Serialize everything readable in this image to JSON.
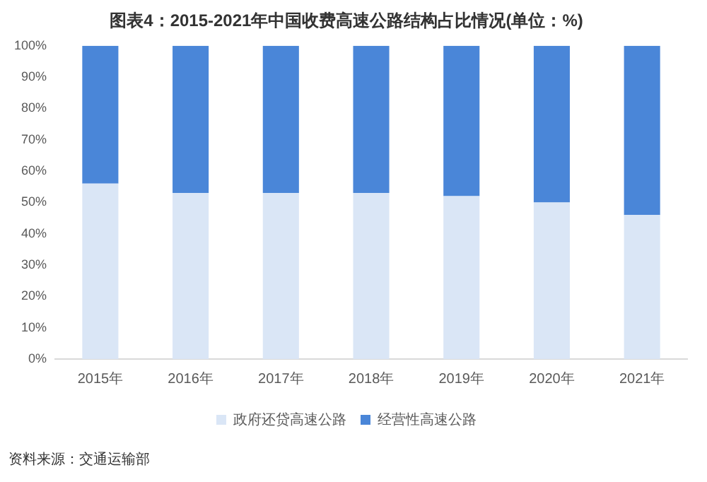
{
  "chart_data": {
    "type": "bar",
    "title": "图表4：2015-2021年中国收费高速公路结构占比情况(单位：%)",
    "categories": [
      "2015年",
      "2016年",
      "2017年",
      "2018年",
      "2019年",
      "2020年",
      "2021年"
    ],
    "series": [
      {
        "name": "政府还贷高速公路",
        "color": "#dae6f6",
        "values": [
          56,
          53,
          53,
          53,
          52,
          50,
          46
        ]
      },
      {
        "name": "经营性高速公路",
        "color": "#4a86d8",
        "values": [
          44,
          47,
          47,
          47,
          48,
          50,
          54
        ]
      }
    ],
    "stacked": true,
    "ylim": [
      0,
      100
    ],
    "yticks": [
      {
        "value": 0,
        "label": "0%"
      },
      {
        "value": 10,
        "label": "10%"
      },
      {
        "value": 20,
        "label": "20%"
      },
      {
        "value": 30,
        "label": "30%"
      },
      {
        "value": 40,
        "label": "40%"
      },
      {
        "value": 50,
        "label": "50%"
      },
      {
        "value": 60,
        "label": "60%"
      },
      {
        "value": 70,
        "label": "70%"
      },
      {
        "value": 80,
        "label": "80%"
      },
      {
        "value": 90,
        "label": "90%"
      },
      {
        "value": 100,
        "label": "100%"
      }
    ],
    "grid": false,
    "legend": "bottom",
    "annotations": [
      "资料来源：交通运输部"
    ]
  }
}
